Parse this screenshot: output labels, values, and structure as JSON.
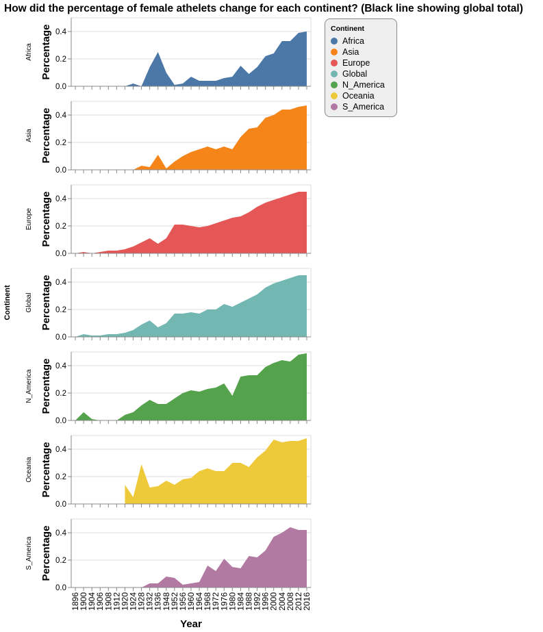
{
  "title": "How did the percentage of female athelets change for each continent? (Black line showing global total)",
  "legend": {
    "title": "Continent",
    "items": [
      {
        "label": "Africa",
        "color": "#4c78a8"
      },
      {
        "label": "Asia",
        "color": "#f58518"
      },
      {
        "label": "Europe",
        "color": "#e45756"
      },
      {
        "label": "Global",
        "color": "#72b7b2"
      },
      {
        "label": "N_America",
        "color": "#54a24b"
      },
      {
        "label": "Oceania",
        "color": "#eeca3b"
      },
      {
        "label": "S_America",
        "color": "#b279a2"
      }
    ]
  },
  "chart_data": {
    "type": "area",
    "facet_by": "Continent",
    "row_title": "Continent",
    "xlabel": "Year",
    "ylabel": "Percentage",
    "ylim": [
      0,
      0.5
    ],
    "yticks": [
      "0.0",
      "0.2",
      "0.4"
    ],
    "grid": true,
    "legend_position": "top-right",
    "categories": [
      "1896",
      "1900",
      "1904",
      "1906",
      "1908",
      "1912",
      "1920",
      "1924",
      "1928",
      "1932",
      "1936",
      "1948",
      "1952",
      "1956",
      "1960",
      "1964",
      "1968",
      "1972",
      "1976",
      "1980",
      "1984",
      "1988",
      "1992",
      "1996",
      "2000",
      "2004",
      "2008",
      "2012",
      "2016"
    ],
    "series": [
      {
        "name": "Africa",
        "color": "#4c78a8",
        "values": [
          null,
          null,
          null,
          null,
          null,
          null,
          0.0,
          0.02,
          0.0,
          0.14,
          0.25,
          0.1,
          0.01,
          0.02,
          0.07,
          0.04,
          0.04,
          0.04,
          0.06,
          0.07,
          0.15,
          0.09,
          0.14,
          0.22,
          0.24,
          0.33,
          0.33,
          0.39,
          0.4
        ]
      },
      {
        "name": "Asia",
        "color": "#f58518",
        "values": [
          null,
          null,
          null,
          null,
          null,
          null,
          null,
          0.0,
          0.03,
          0.02,
          0.11,
          0.01,
          0.06,
          0.1,
          0.13,
          0.15,
          0.17,
          0.15,
          0.17,
          0.15,
          0.24,
          0.3,
          0.31,
          0.38,
          0.4,
          0.44,
          0.44,
          0.46,
          0.47
        ]
      },
      {
        "name": "Europe",
        "color": "#e45756",
        "values": [
          0.0,
          0.01,
          0.0,
          0.01,
          0.02,
          0.02,
          0.03,
          0.05,
          0.08,
          0.11,
          0.07,
          0.11,
          0.21,
          0.21,
          0.2,
          0.19,
          0.2,
          0.22,
          0.24,
          0.26,
          0.27,
          0.3,
          0.34,
          0.37,
          0.39,
          0.41,
          0.43,
          0.45,
          0.45
        ]
      },
      {
        "name": "Global",
        "color": "#72b7b2",
        "values": [
          0.0,
          0.02,
          0.01,
          0.01,
          0.02,
          0.02,
          0.03,
          0.05,
          0.09,
          0.12,
          0.07,
          0.1,
          0.17,
          0.17,
          0.18,
          0.17,
          0.2,
          0.2,
          0.24,
          0.22,
          0.25,
          0.28,
          0.31,
          0.36,
          0.39,
          0.41,
          0.43,
          0.45,
          0.45
        ]
      },
      {
        "name": "N_America",
        "color": "#54a24b",
        "values": [
          0.0,
          0.06,
          0.01,
          0.0,
          0.0,
          0.0,
          0.04,
          0.06,
          0.11,
          0.15,
          0.12,
          0.12,
          0.16,
          0.2,
          0.22,
          0.21,
          0.23,
          0.24,
          0.27,
          0.18,
          0.32,
          0.33,
          0.33,
          0.39,
          0.42,
          0.44,
          0.43,
          0.48,
          0.49
        ]
      },
      {
        "name": "Oceania",
        "color": "#eeca3b",
        "values": [
          null,
          null,
          null,
          null,
          null,
          null,
          0.14,
          0.05,
          0.29,
          0.12,
          0.13,
          0.17,
          0.14,
          0.18,
          0.19,
          0.24,
          0.26,
          0.24,
          0.24,
          0.3,
          0.3,
          0.27,
          0.34,
          0.39,
          0.47,
          0.45,
          0.46,
          0.46,
          0.48
        ]
      },
      {
        "name": "S_America",
        "color": "#b279a2",
        "values": [
          null,
          null,
          null,
          null,
          null,
          null,
          null,
          null,
          0.0,
          0.03,
          0.03,
          0.08,
          0.07,
          0.02,
          0.03,
          0.04,
          0.16,
          0.12,
          0.21,
          0.15,
          0.14,
          0.23,
          0.22,
          0.27,
          0.37,
          0.4,
          0.44,
          0.42,
          0.42
        ]
      }
    ]
  }
}
